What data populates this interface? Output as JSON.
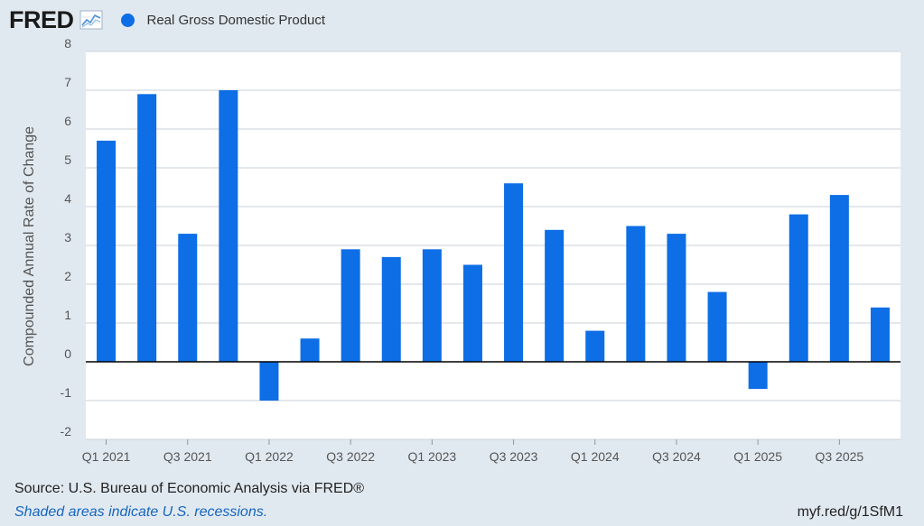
{
  "header": {
    "logo_text": "FRED",
    "logo_icon": "line-chart-icon",
    "legend_label": "Real Gross Domestic Product"
  },
  "colors": {
    "series": "#0d6ee6",
    "background": "#e1e9f0",
    "plot_area": "#ffffff",
    "grid": "#c9d2da",
    "zero_line": "#000000"
  },
  "footer": {
    "source": "Source: U.S. Bureau of Economic Analysis via FRED®",
    "recession_note": "Shaded areas indicate U.S. recessions.",
    "short_url": "myf.red/g/1SfM1"
  },
  "chart_data": {
    "type": "bar",
    "title": "",
    "xlabel": "",
    "ylabel": "Compounded Annual Rate of Change",
    "ylim": [
      -2,
      8
    ],
    "yticks": [
      -2,
      -1,
      0,
      1,
      2,
      3,
      4,
      5,
      6,
      7,
      8
    ],
    "grid": true,
    "legend_position": "top-left",
    "categories": [
      "Q1 2021",
      "Q2 2021",
      "Q3 2021",
      "Q4 2021",
      "Q1 2022",
      "Q2 2022",
      "Q3 2022",
      "Q4 2022",
      "Q1 2023",
      "Q2 2023",
      "Q3 2023",
      "Q4 2023",
      "Q1 2024",
      "Q2 2024",
      "Q3 2024",
      "Q4 2024",
      "Q1 2025",
      "Q2 2025",
      "Q3 2025",
      "Q4 2025"
    ],
    "tick_labels": [
      "Q1 2021",
      "Q3 2021",
      "Q1 2022",
      "Q3 2022",
      "Q1 2023",
      "Q3 2023",
      "Q1 2024",
      "Q3 2024",
      "Q1 2025",
      "Q3 2025"
    ],
    "series": [
      {
        "name": "Real Gross Domestic Product",
        "values": [
          5.7,
          6.9,
          3.3,
          7.0,
          -1.0,
          0.6,
          2.9,
          2.7,
          2.9,
          2.5,
          4.6,
          3.4,
          0.8,
          3.5,
          3.3,
          1.8,
          -0.7,
          3.8,
          4.3,
          1.4
        ]
      }
    ]
  }
}
